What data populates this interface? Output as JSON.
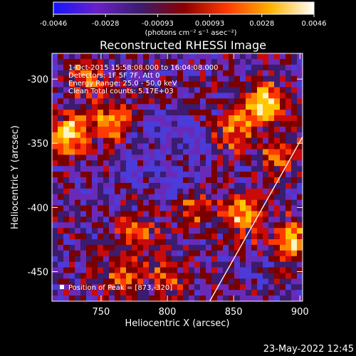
{
  "chart_data": {
    "type": "heatmap",
    "title": "Reconstructed RHESSI Image",
    "xlabel": "Heliocentric X (arcsec)",
    "ylabel": "Heliocentric Y (arcsec)",
    "xlim": [
      713,
      902
    ],
    "ylim": [
      -473,
      -280
    ],
    "xticks": [
      750,
      800,
      850,
      900
    ],
    "yticks": [
      -300,
      -350,
      -400,
      -450
    ],
    "colorbar": {
      "min": -0.0046,
      "max": 0.0046,
      "ticks": [
        "-0.0046",
        "-0.0028",
        "-0.00093",
        "0.00093",
        "0.0028",
        "0.0046"
      ],
      "unit_label": "(photons cm⁻² s⁻¹ asec⁻²)",
      "colors": [
        "#1515ff",
        "#6a20c8",
        "#3b1c6e",
        "#8a0000",
        "#ff3a00",
        "#ffb300",
        "#ffffff"
      ]
    },
    "info_lines": [
      "1-Oct-2015 15:58:08.000 to 16:04:08.000",
      "Detectors: 1F 5F 7F, Att 0",
      "Energy Range: 25.0 - 50.0 keV",
      "Clean    Total counts: 5.17E+03"
    ],
    "peak_label": "Position of Peak = [873,-320]",
    "bright_sources": [
      {
        "x": 873,
        "y": -320,
        "level": 1.0
      },
      {
        "x": 725,
        "y": -343,
        "level": 0.85
      },
      {
        "x": 757,
        "y": -335,
        "level": 0.75
      },
      {
        "x": 858,
        "y": -405,
        "level": 0.8
      },
      {
        "x": 895,
        "y": -425,
        "level": 0.75
      },
      {
        "x": 850,
        "y": -340,
        "level": 0.55
      },
      {
        "x": 777,
        "y": -420,
        "level": 0.5
      },
      {
        "x": 768,
        "y": -452,
        "level": 0.45
      },
      {
        "x": 885,
        "y": -360,
        "level": 0.5
      },
      {
        "x": 800,
        "y": -455,
        "level": 0.4
      },
      {
        "x": 740,
        "y": -300,
        "level": 0.45
      },
      {
        "x": 820,
        "y": -400,
        "level": 0.35
      }
    ],
    "limb_line": {
      "from": [
        832,
        -473
      ],
      "to": [
        902,
        -345
      ]
    }
  },
  "footer": {
    "date": "23-May-2022 12:45"
  }
}
